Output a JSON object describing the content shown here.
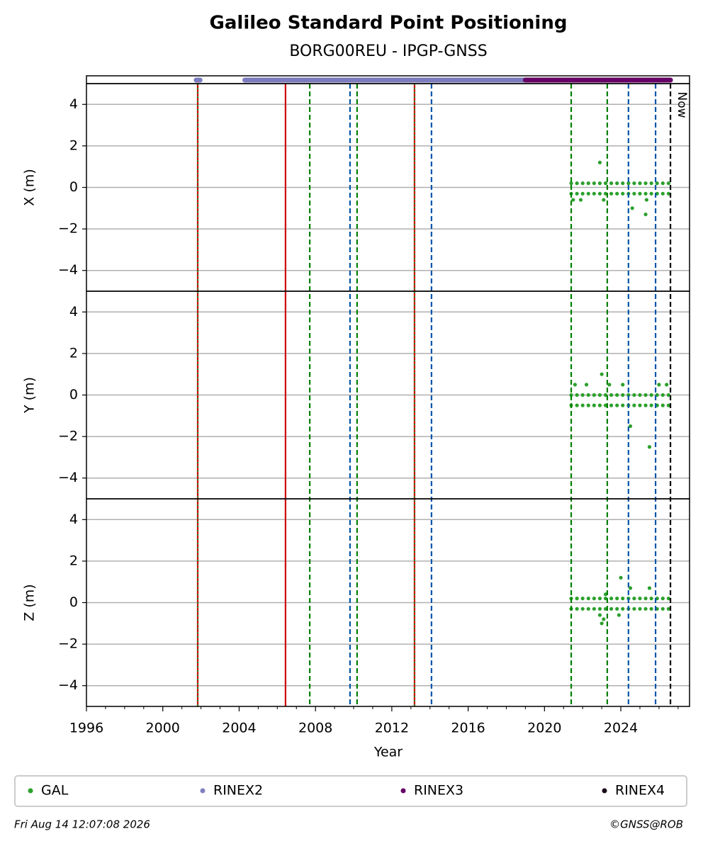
{
  "chart_data": {
    "type": "scatter",
    "title": "Galileo Standard Point Positioning",
    "subtitle": "BORG00REU - IPGP-GNSS",
    "xlabel": "Year",
    "xlim": [
      1996,
      2027.6
    ],
    "xticks": [
      1996,
      2000,
      2004,
      2008,
      2012,
      2016,
      2020,
      2024
    ],
    "xminorticks": [
      1997,
      1998,
      1999,
      2001,
      2002,
      2003,
      2005,
      2006,
      2007,
      2009,
      2010,
      2011,
      2013,
      2014,
      2015,
      2017,
      2018,
      2019,
      2021,
      2022,
      2023,
      2025,
      2026,
      2027
    ],
    "ylim": [
      -5,
      5
    ],
    "yticks": [
      {
        "value": -4,
        "label": "−4"
      },
      {
        "value": -2,
        "label": "−2"
      },
      0,
      2,
      4
    ],
    "grid": true,
    "point_color": "#2ca02c",
    "panels": [
      {
        "ylabel": "X (m)",
        "x": [
          2021.4,
          2021.4,
          2021.7,
          2021.7,
          2022.0,
          2022.0,
          2022.3,
          2022.3,
          2022.6,
          2022.6,
          2022.9,
          2022.9,
          2023.2,
          2023.2,
          2023.5,
          2023.5,
          2023.8,
          2023.8,
          2024.1,
          2024.1,
          2024.4,
          2024.4,
          2024.7,
          2024.7,
          2025.0,
          2025.0,
          2025.3,
          2025.3,
          2025.6,
          2025.6,
          2025.9,
          2025.9,
          2026.2,
          2026.2,
          2026.5,
          2026.5,
          2021.5,
          2021.9,
          2022.9,
          2023.1,
          2024.6,
          2025.3,
          2025.35
        ],
        "values": [
          0.2,
          -0.3,
          0.2,
          -0.3,
          0.2,
          -0.3,
          0.2,
          -0.3,
          0.2,
          -0.3,
          0.2,
          -0.3,
          0.2,
          -0.3,
          0.2,
          -0.3,
          0.2,
          -0.3,
          0.2,
          -0.3,
          0.2,
          -0.3,
          0.2,
          -0.3,
          0.2,
          -0.3,
          0.2,
          -0.3,
          0.2,
          -0.3,
          0.2,
          -0.3,
          0.2,
          -0.3,
          0.2,
          -0.3,
          -0.6,
          -0.6,
          1.2,
          -0.6,
          -1.0,
          -1.3,
          -0.6
        ]
      },
      {
        "ylabel": "Y (m)",
        "x": [
          2021.4,
          2021.4,
          2021.7,
          2021.7,
          2022.0,
          2022.0,
          2022.3,
          2022.3,
          2022.6,
          2022.6,
          2022.9,
          2022.9,
          2023.2,
          2023.2,
          2023.5,
          2023.5,
          2023.8,
          2023.8,
          2024.1,
          2024.1,
          2024.4,
          2024.4,
          2024.7,
          2024.7,
          2025.0,
          2025.0,
          2025.3,
          2025.3,
          2025.6,
          2025.6,
          2025.9,
          2025.9,
          2026.2,
          2026.2,
          2026.5,
          2026.5,
          2021.6,
          2022.2,
          2023.0,
          2023.4,
          2024.1,
          2024.5,
          2025.5,
          2026.0,
          2026.4
        ],
        "values": [
          0,
          -0.5,
          0,
          -0.5,
          0,
          -0.5,
          0,
          -0.5,
          0,
          -0.5,
          0,
          -0.5,
          0,
          -0.5,
          0,
          -0.5,
          0,
          -0.5,
          0,
          -0.5,
          0,
          -0.5,
          0,
          -0.5,
          0,
          -0.5,
          0,
          -0.5,
          0,
          -0.5,
          0,
          -0.5,
          0,
          -0.5,
          0,
          -0.5,
          0.5,
          0.5,
          1.0,
          0.5,
          0.5,
          -1.5,
          -2.5,
          0.5,
          0.5
        ]
      },
      {
        "ylabel": "Z (m)",
        "x": [
          2021.4,
          2021.4,
          2021.7,
          2021.7,
          2022.0,
          2022.0,
          2022.3,
          2022.3,
          2022.6,
          2022.6,
          2022.9,
          2022.9,
          2023.2,
          2023.2,
          2023.5,
          2023.5,
          2023.8,
          2023.8,
          2024.1,
          2024.1,
          2024.4,
          2024.4,
          2024.7,
          2024.7,
          2025.0,
          2025.0,
          2025.3,
          2025.3,
          2025.6,
          2025.6,
          2025.9,
          2025.9,
          2026.2,
          2026.2,
          2026.5,
          2026.5,
          2022.9,
          2023.0,
          2023.1,
          2023.2,
          2024.0,
          2024.5,
          2023.9,
          2025.5
        ],
        "values": [
          0.2,
          -0.3,
          0.2,
          -0.3,
          0.2,
          -0.3,
          0.2,
          -0.3,
          0.2,
          -0.3,
          0.2,
          -0.3,
          0.2,
          -0.3,
          0.2,
          -0.3,
          0.2,
          -0.3,
          0.2,
          -0.3,
          0.2,
          -0.3,
          0.2,
          -0.3,
          0.2,
          -0.3,
          0.2,
          -0.3,
          0.2,
          -0.3,
          0.2,
          -0.3,
          0.2,
          -0.3,
          0.2,
          -0.3,
          -0.6,
          -1.0,
          -0.8,
          0.4,
          1.2,
          0.7,
          -0.6,
          0.7
        ]
      }
    ],
    "availability": [
      {
        "color": "#7b7bbd",
        "ranges": [
          [
            2001.75,
            2001.95
          ],
          [
            2004.3,
            2019.0
          ]
        ]
      },
      {
        "color": "#660066",
        "ranges": [
          [
            2019.0,
            2026.6
          ]
        ]
      }
    ],
    "events": [
      {
        "x": 2001.83,
        "color": "#cc0000",
        "style": "solid"
      },
      {
        "x": 2001.83,
        "color": "#2e8b2e",
        "style": "dotted"
      },
      {
        "x": 2006.43,
        "color": "#cc0000",
        "style": "solid"
      },
      {
        "x": 2007.7,
        "color": "#007f00",
        "style": "dashed"
      },
      {
        "x": 2009.81,
        "color": "#0055aa",
        "style": "dashed"
      },
      {
        "x": 2010.18,
        "color": "#007f00",
        "style": "dashed"
      },
      {
        "x": 2013.19,
        "color": "#cc0000",
        "style": "solid"
      },
      {
        "x": 2013.19,
        "color": "#2e8b2e",
        "style": "dotted"
      },
      {
        "x": 2014.08,
        "color": "#0055aa",
        "style": "dashed"
      },
      {
        "x": 2021.4,
        "color": "#007f00",
        "style": "dashed"
      },
      {
        "x": 2023.29,
        "color": "#007f00",
        "style": "dashed"
      },
      {
        "x": 2024.4,
        "color": "#0055aa",
        "style": "dashed"
      },
      {
        "x": 2025.82,
        "color": "#0055aa",
        "style": "dashed"
      },
      {
        "x": 2026.6,
        "color": "#000000",
        "style": "dashed"
      }
    ],
    "now_label": "Now",
    "series": [
      {
        "name": "GAL",
        "color": "#2ca02c"
      },
      {
        "name": "RINEX2",
        "color": "#8080c0"
      },
      {
        "name": "RINEX3",
        "color": "#660066"
      },
      {
        "name": "RINEX4",
        "color": "#1a0a1a"
      }
    ],
    "timestamp": "Fri Aug 14 12:07:08 2026",
    "credit": "©GNSS@ROB"
  }
}
